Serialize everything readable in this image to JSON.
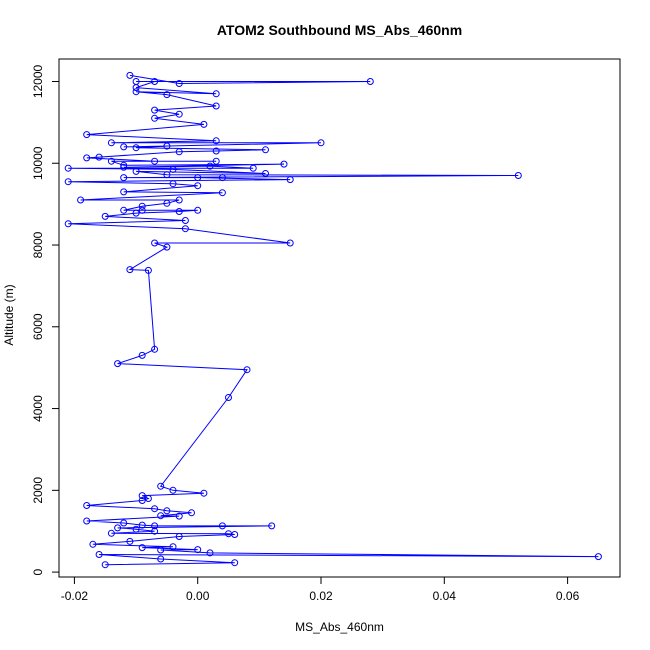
{
  "chart_data": {
    "type": "line",
    "title": "ATOM2 Southbound MS_Abs_460nm",
    "xlabel": "MS_Abs_460nm",
    "ylabel": "Altitude (m)",
    "xlim": [
      -0.0225,
      0.0685
    ],
    "ylim": [
      -120,
      12550
    ],
    "xticks": [
      -0.02,
      0.0,
      0.02,
      0.04,
      0.06
    ],
    "xtick_labels": [
      "-0.02",
      "0.00",
      "0.02",
      "0.04",
      "0.06"
    ],
    "yticks": [
      0,
      2000,
      4000,
      6000,
      8000,
      10000,
      12000
    ],
    "ytick_labels": [
      "0",
      "2000",
      "4000",
      "6000",
      "8000",
      "10000",
      "12000"
    ],
    "grid": false,
    "colors": {
      "series": "#0000ff",
      "axes": "#000000"
    },
    "series": [
      {
        "marker": "open-circle",
        "points": [
          [
            -0.011,
            12150
          ],
          [
            -0.003,
            11950
          ],
          [
            0.028,
            12000
          ],
          [
            -0.01,
            12000
          ],
          [
            -0.007,
            12000
          ],
          [
            -0.01,
            11850
          ],
          [
            0.003,
            11700
          ],
          [
            -0.01,
            11750
          ],
          [
            -0.005,
            11680
          ],
          [
            0.003,
            11400
          ],
          [
            -0.007,
            11300
          ],
          [
            -0.003,
            11200
          ],
          [
            -0.007,
            11100
          ],
          [
            0.001,
            10950
          ],
          [
            -0.018,
            10700
          ],
          [
            0.003,
            10550
          ],
          [
            -0.014,
            10500
          ],
          [
            0.02,
            10500
          ],
          [
            -0.012,
            10400
          ],
          [
            -0.005,
            10420
          ],
          [
            -0.01,
            10380
          ],
          [
            0.011,
            10330
          ],
          [
            0.003,
            10300
          ],
          [
            -0.003,
            10280
          ],
          [
            -0.016,
            10150
          ],
          [
            -0.018,
            10130
          ],
          [
            -0.007,
            10050
          ],
          [
            0.003,
            10050
          ],
          [
            -0.014,
            10050
          ],
          [
            -0.012,
            9950
          ],
          [
            0.014,
            9980
          ],
          [
            -0.012,
            9900
          ],
          [
            0.002,
            9930
          ],
          [
            0.009,
            9880
          ],
          [
            -0.021,
            9880
          ],
          [
            -0.004,
            9850
          ],
          [
            0.011,
            9750
          ],
          [
            -0.01,
            9800
          ],
          [
            -0.005,
            9720
          ],
          [
            0.052,
            9700
          ],
          [
            -0.012,
            9650
          ],
          [
            0.004,
            9650
          ],
          [
            0.0,
            9650
          ],
          [
            0.015,
            9600
          ],
          [
            -0.021,
            9550
          ],
          [
            -0.004,
            9500
          ],
          [
            0.0,
            9450
          ],
          [
            -0.012,
            9300
          ],
          [
            0.004,
            9280
          ],
          [
            -0.019,
            9100
          ],
          [
            -0.003,
            9100
          ],
          [
            -0.005,
            9020
          ],
          [
            -0.009,
            8950
          ],
          [
            -0.012,
            8850
          ],
          [
            -0.009,
            8850
          ],
          [
            0.0,
            8850
          ],
          [
            -0.003,
            8820
          ],
          [
            -0.01,
            8780
          ],
          [
            -0.015,
            8700
          ],
          [
            -0.002,
            8600
          ],
          [
            -0.021,
            8520
          ],
          [
            -0.002,
            8400
          ],
          [
            0.015,
            8050
          ],
          [
            -0.007,
            8050
          ],
          [
            -0.005,
            7950
          ],
          [
            -0.011,
            7400
          ],
          [
            -0.008,
            7380
          ],
          [
            -0.007,
            5450
          ],
          [
            -0.009,
            5300
          ],
          [
            -0.013,
            5100
          ],
          [
            0.008,
            4950
          ],
          [
            0.005,
            4270
          ],
          [
            -0.006,
            2100
          ],
          [
            -0.004,
            2000
          ],
          [
            0.001,
            1930
          ],
          [
            -0.009,
            1870
          ],
          [
            -0.008,
            1800
          ],
          [
            -0.009,
            1750
          ],
          [
            -0.018,
            1630
          ],
          [
            -0.007,
            1550
          ],
          [
            -0.005,
            1500
          ],
          [
            -0.001,
            1450
          ],
          [
            -0.006,
            1380
          ],
          [
            -0.003,
            1370
          ],
          [
            -0.018,
            1250
          ],
          [
            -0.012,
            1200
          ],
          [
            -0.009,
            1150
          ],
          [
            -0.007,
            1130
          ],
          [
            0.004,
            1130
          ],
          [
            0.012,
            1130
          ],
          [
            -0.013,
            1080
          ],
          [
            -0.01,
            1050
          ],
          [
            -0.007,
            1000
          ],
          [
            -0.014,
            950
          ],
          [
            0.005,
            940
          ],
          [
            0.006,
            920
          ],
          [
            -0.003,
            870
          ],
          [
            -0.011,
            750
          ],
          [
            -0.017,
            680
          ],
          [
            -0.004,
            620
          ],
          [
            -0.009,
            600
          ],
          [
            0.0,
            550
          ],
          [
            -0.006,
            540
          ],
          [
            0.002,
            470
          ],
          [
            0.065,
            380
          ],
          [
            -0.016,
            430
          ],
          [
            -0.006,
            320
          ],
          [
            0.006,
            230
          ],
          [
            -0.015,
            180
          ]
        ]
      }
    ]
  }
}
